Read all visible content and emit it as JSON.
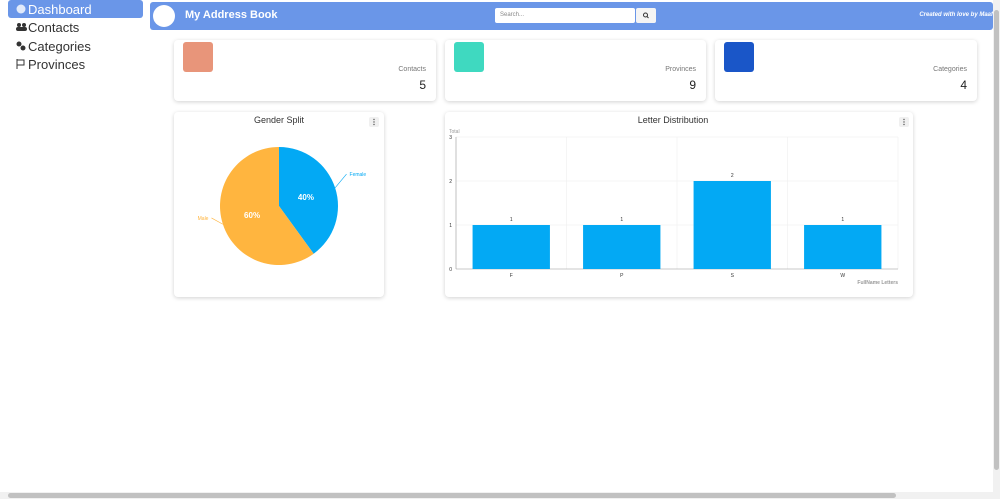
{
  "sidebar": {
    "items": [
      "Dashboard",
      "Contacts",
      "Categories",
      "Provinces"
    ]
  },
  "header": {
    "title": "My Address Book",
    "search_placeholder": "Search...",
    "credit": "Created with love by Maaf"
  },
  "stats": [
    {
      "label": "Contacts",
      "value": "5"
    },
    {
      "label": "Provinces",
      "value": "9"
    },
    {
      "label": "Categories",
      "value": "4"
    }
  ],
  "chart_data": [
    {
      "type": "pie",
      "title": "Gender Split",
      "categories": [
        "Female",
        "Male"
      ],
      "values": [
        40,
        60
      ],
      "value_labels": [
        "40%",
        "60%"
      ],
      "colors": [
        "#03a9f4",
        "#ffb53f"
      ]
    },
    {
      "type": "bar",
      "title": "Letter Distribution",
      "categories": [
        "F",
        "P",
        "S",
        "W"
      ],
      "values": [
        1,
        1,
        2,
        1
      ],
      "color": "#03a9f4",
      "ylabel": "Total",
      "xlabel": "FullName Letters",
      "ylim": [
        0,
        3
      ],
      "yticks": [
        0,
        1,
        2,
        3
      ],
      "grid": true
    }
  ]
}
